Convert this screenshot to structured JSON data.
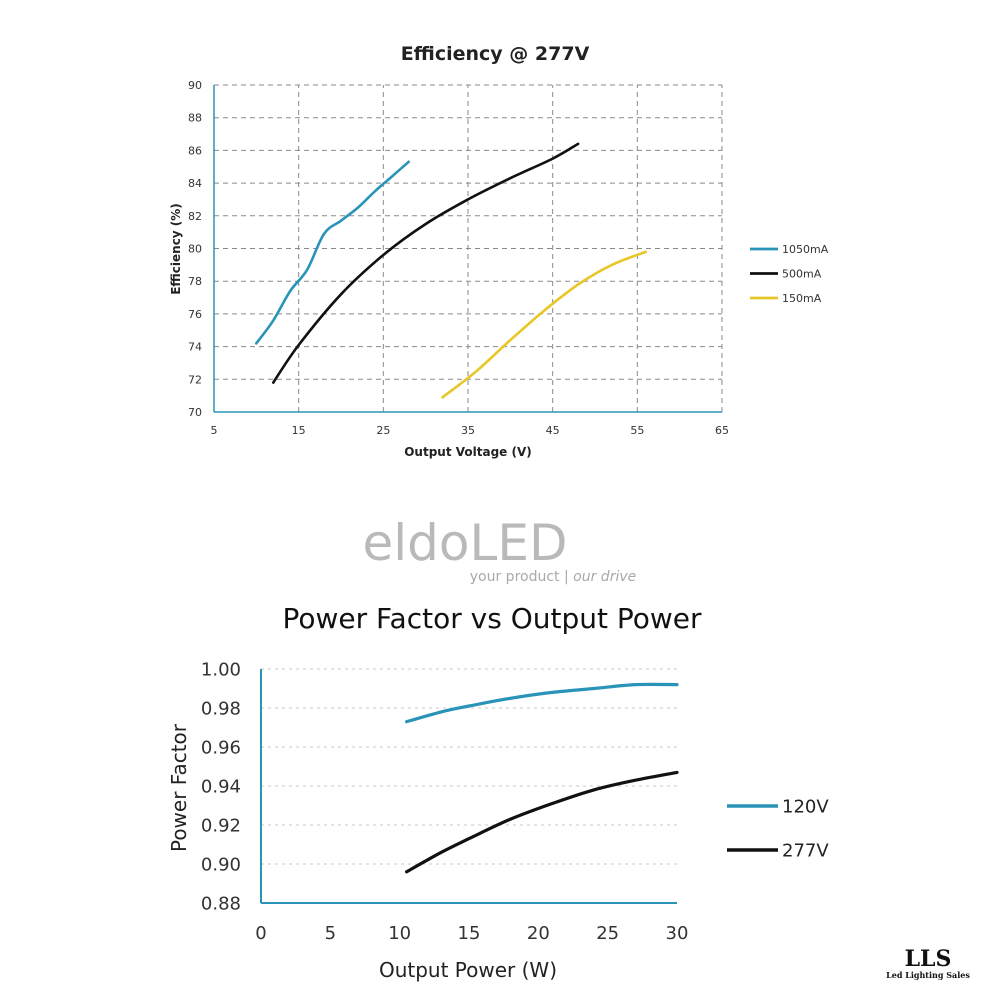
{
  "watermark": {
    "brand": "eldoLED",
    "tagline_a": "your product | ",
    "tagline_b": "our drive"
  },
  "logo": {
    "main": "LLS",
    "sub": "Led Lighting Sales"
  },
  "chart_data": [
    {
      "type": "line",
      "title": "Efficiency @ 277V",
      "xlabel": "Output Voltage (V)",
      "ylabel": "Efficiency (%)",
      "xlim": [
        5,
        65
      ],
      "ylim": [
        70,
        90
      ],
      "xticks": [
        5,
        15,
        25,
        35,
        45,
        55,
        65
      ],
      "yticks": [
        70,
        72,
        74,
        76,
        78,
        80,
        82,
        84,
        86,
        88,
        90
      ],
      "grid": true,
      "legend_position": "right",
      "series": [
        {
          "name": "1050mA",
          "color": "#2a93b8",
          "points": [
            [
              10,
              74.2
            ],
            [
              12,
              75.6
            ],
            [
              14,
              77.4
            ],
            [
              16,
              78.7
            ],
            [
              18,
              80.9
            ],
            [
              20,
              81.7
            ],
            [
              22,
              82.5
            ],
            [
              24,
              83.5
            ],
            [
              26,
              84.4
            ],
            [
              28,
              85.3
            ]
          ]
        },
        {
          "name": "500mA",
          "color": "#111111",
          "points": [
            [
              12,
              71.8
            ],
            [
              15,
              74.1
            ],
            [
              20,
              77.2
            ],
            [
              25,
              79.6
            ],
            [
              30,
              81.5
            ],
            [
              35,
              83.0
            ],
            [
              40,
              84.3
            ],
            [
              45,
              85.5
            ],
            [
              48,
              86.4
            ]
          ]
        },
        {
          "name": "150mA",
          "color": "#e8c728",
          "points": [
            [
              32,
              70.9
            ],
            [
              36,
              72.5
            ],
            [
              40,
              74.4
            ],
            [
              44,
              76.2
            ],
            [
              48,
              77.8
            ],
            [
              52,
              79.0
            ],
            [
              56,
              79.8
            ]
          ]
        }
      ]
    },
    {
      "type": "line",
      "title": "Power Factor vs Output Power",
      "xlabel": "Output Power (W)",
      "ylabel": "Power Factor",
      "xlim": [
        0,
        30
      ],
      "ylim": [
        0.88,
        1.0
      ],
      "xticks": [
        0,
        5,
        10,
        15,
        20,
        25,
        30
      ],
      "yticks": [
        "0.88",
        "0.90",
        "0.92",
        "0.94",
        "0.96",
        "0.98",
        "1.00"
      ],
      "grid": true,
      "legend_position": "right",
      "series": [
        {
          "name": "120V",
          "color": "#2a93b8",
          "points": [
            [
              10.5,
              0.973
            ],
            [
              13,
              0.978
            ],
            [
              15,
              0.981
            ],
            [
              18,
              0.985
            ],
            [
              21,
              0.988
            ],
            [
              24,
              0.99
            ],
            [
              27,
              0.992
            ],
            [
              30,
              0.992
            ]
          ]
        },
        {
          "name": "277V",
          "color": "#111111",
          "points": [
            [
              10.5,
              0.896
            ],
            [
              13,
              0.906
            ],
            [
              15,
              0.913
            ],
            [
              18,
              0.923
            ],
            [
              21,
              0.931
            ],
            [
              24,
              0.938
            ],
            [
              27,
              0.943
            ],
            [
              30,
              0.947
            ]
          ]
        }
      ]
    }
  ]
}
